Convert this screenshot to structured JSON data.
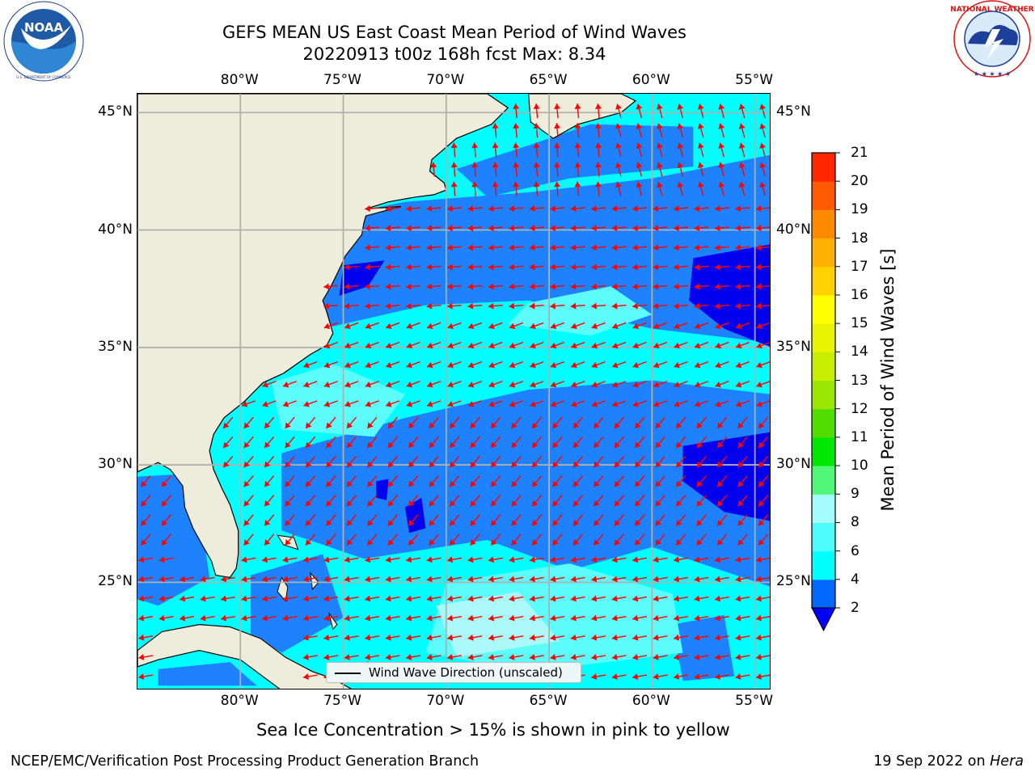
{
  "header": {
    "title_line1": "GEFS MEAN US East Coast Mean Period of Wind Waves",
    "title_line2": "20220913 t00z 168h fcst   Max: 8.34"
  },
  "logos": {
    "left": {
      "name": "NOAA",
      "text": "NOAA",
      "ring_text": "NATIONAL OCEANIC AND ATMOSPHERIC ADMINISTRATION · U.S. DEPARTMENT OF COMMERCE"
    },
    "right": {
      "name": "National Weather Service",
      "ring_text": "NATIONAL WEATHER SERVICE"
    }
  },
  "map": {
    "lon_labels": [
      "80°W",
      "75°W",
      "70°W",
      "65°W",
      "60°W",
      "55°W"
    ],
    "lat_labels": [
      "45°N",
      "40°N",
      "35°N",
      "30°N",
      "25°N"
    ],
    "lons": [
      -80,
      -75,
      -70,
      -65,
      -60,
      -55
    ],
    "lats": [
      45,
      40,
      35,
      30,
      25
    ],
    "extent": {
      "lon_min": -85,
      "lon_max": -54.2,
      "lat_min": 20.4,
      "lat_max": 45.8
    },
    "colors": {
      "land": "#eeeddb",
      "period_2_4": "#1e82ff",
      "period_4_6": "#00ffff",
      "period_6_8": "#5cfcfc",
      "period_8_9": "#aaf8f8",
      "below_2": "#0000ee",
      "arrow": "#ff0000",
      "grid": "#b0b0b0",
      "coast": "#000000"
    },
    "legend_label": "Wind Wave Direction (unscaled)"
  },
  "colorbar": {
    "label": "Mean Period of Wind Waves [s]",
    "ticks": [
      "21",
      "20",
      "19",
      "18",
      "17",
      "16",
      "15",
      "14",
      "13",
      "12",
      "11",
      "10",
      "9",
      "8",
      "6",
      "4",
      "2"
    ],
    "levels": [
      2,
      4,
      6,
      8,
      9,
      10,
      11,
      12,
      13,
      14,
      15,
      16,
      17,
      18,
      19,
      20,
      21
    ],
    "colors": [
      "#0068ff",
      "#00ffff",
      "#4dfdfd",
      "#a3fbfb",
      "#52f77a",
      "#00e800",
      "#52dd00",
      "#99e600",
      "#c8ef00",
      "#e8f400",
      "#ffff00",
      "#ffd200",
      "#ffb000",
      "#ff8a00",
      "#ff5a00",
      "#ff2600"
    ],
    "extend_color": "#0000ff"
  },
  "notes": {
    "sea_ice": "Sea Ice Concentration > 15% is shown in pink to yellow"
  },
  "footer": {
    "left": "NCEP/EMC/Verification Post Processing Product Generation Branch",
    "right_prefix": "19 Sep 2022 on ",
    "right_machine": "Hera"
  }
}
